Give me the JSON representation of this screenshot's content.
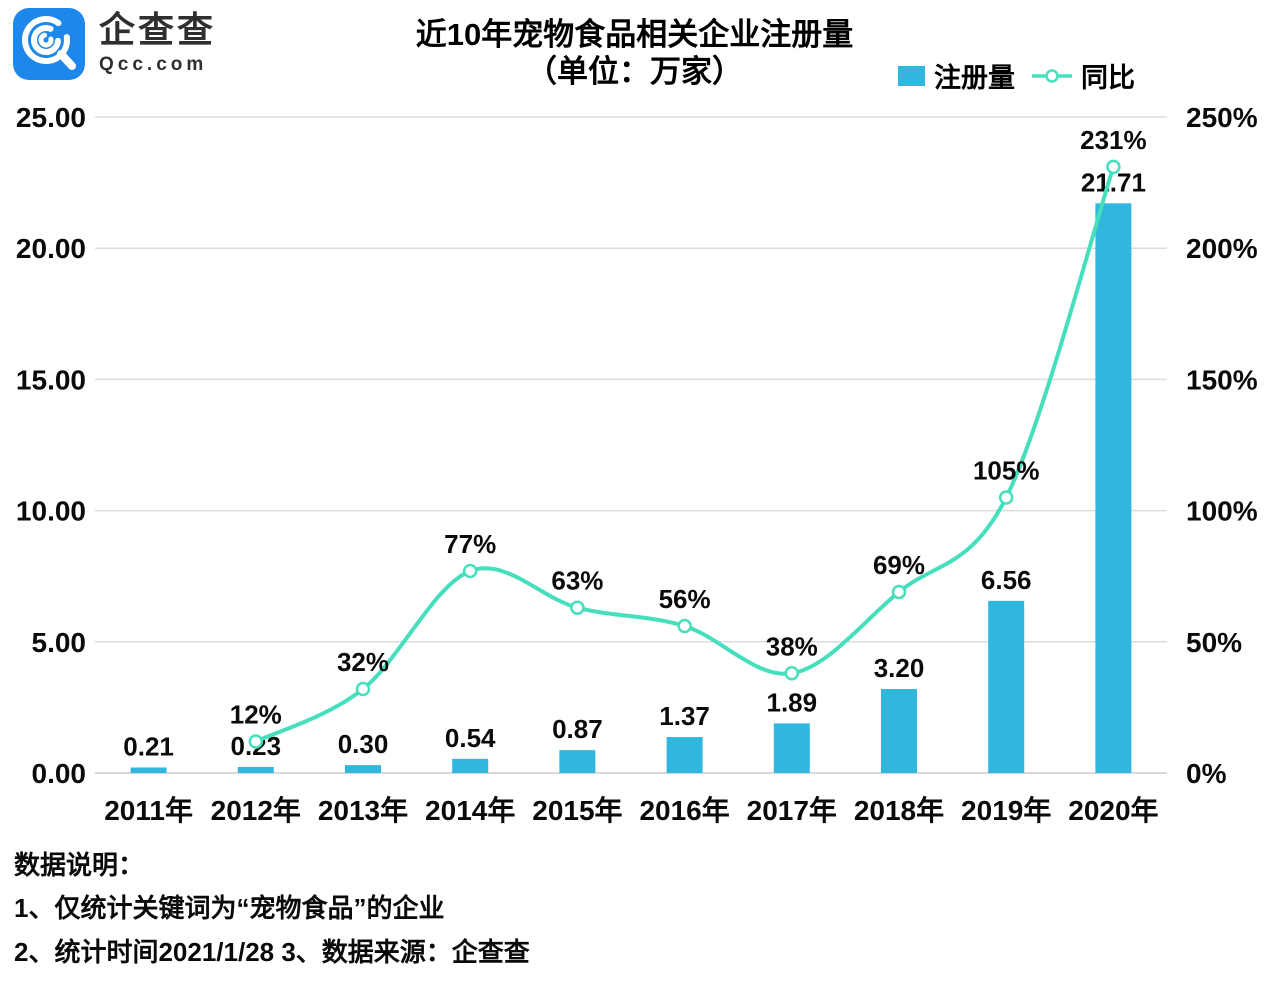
{
  "logo": {
    "name": "企查查",
    "domain": "Qcc.com"
  },
  "title": {
    "line1": "近10年宠物食品相关企业注册量",
    "line2": "（单位：万家）"
  },
  "legend": {
    "bar_label": "注册量",
    "line_label": "同比"
  },
  "colors": {
    "bar": "#31B6DE",
    "line": "#46DFBD",
    "grid": "#DCDCDC",
    "baseline": "#CCCCCC",
    "text": "#0a0a0a",
    "logo_blue": "#1E88EA"
  },
  "chart_data": {
    "type": "bar",
    "categories": [
      "2011年",
      "2012年",
      "2013年",
      "2014年",
      "2015年",
      "2016年",
      "2017年",
      "2018年",
      "2019年",
      "2020年"
    ],
    "series": [
      {
        "name": "注册量",
        "type": "bar",
        "axis": "left",
        "values": [
          0.21,
          0.23,
          0.3,
          0.54,
          0.87,
          1.37,
          1.89,
          3.2,
          6.56,
          21.71
        ],
        "labels": [
          "0.21",
          "0.23",
          "0.30",
          "0.54",
          "0.87",
          "1.37",
          "1.89",
          "3.20",
          "6.56",
          "21.71"
        ]
      },
      {
        "name": "同比",
        "type": "line",
        "axis": "right",
        "values": [
          null,
          12,
          32,
          77,
          63,
          56,
          38,
          69,
          105,
          231
        ],
        "labels": [
          null,
          "12%",
          "32%",
          "77%",
          "63%",
          "56%",
          "38%",
          "69%",
          "105%",
          "231%"
        ]
      }
    ],
    "title": "近10年宠物食品相关企业注册量（单位：万家）",
    "xlabel": "",
    "ylabel": "",
    "left_axis": {
      "min": 0,
      "max": 25,
      "ticks": [
        "0.00",
        "5.00",
        "10.00",
        "15.00",
        "20.00",
        "25.00"
      ]
    },
    "right_axis": {
      "min": 0,
      "max": 250,
      "ticks": [
        "0%",
        "50%",
        "100%",
        "150%",
        "200%",
        "250%"
      ]
    },
    "grid": true,
    "legend_position": "top-right"
  },
  "footer": {
    "heading": "数据说明：",
    "line1": "1、仅统计关键词为“宠物食品”的企业",
    "line2": "2、统计时间2021/1/28   3、数据来源：企查查"
  }
}
